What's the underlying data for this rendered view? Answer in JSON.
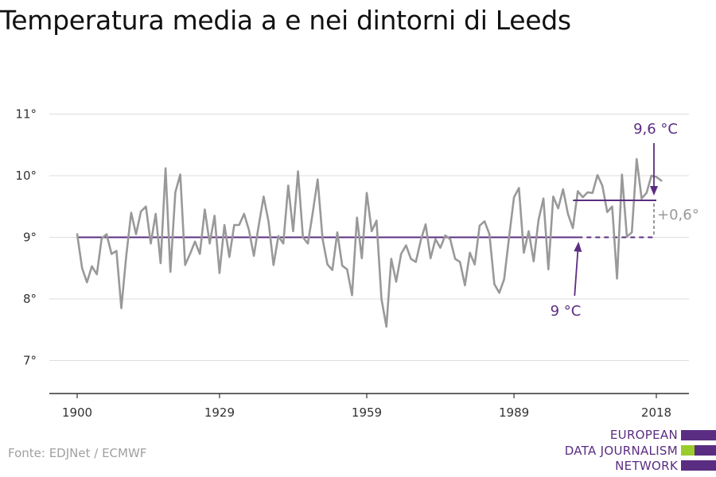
{
  "title": "Temperatura media a e nei dintorni di Leeds",
  "source": "Fonte: EDJNet / ECMWF",
  "logo": {
    "lines": [
      "EUROPEAN",
      "DATA JOURNALISM",
      "NETWORK"
    ],
    "colors": {
      "purple": "#5b2d82",
      "green": "#9ccc2c"
    }
  },
  "chart_data": {
    "type": "line",
    "title": "Temperatura media a e nei dintorni di Leeds",
    "xlabel": "",
    "ylabel": "",
    "xlim": [
      1900,
      2018
    ],
    "ylim": [
      6.5,
      11.5
    ],
    "x_ticks": [
      1900,
      1929,
      1959,
      1989,
      2018
    ],
    "y_ticks": [
      {
        "value": 7,
        "label": "7°"
      },
      {
        "value": 8,
        "label": "8°"
      },
      {
        "value": 9,
        "label": "9°"
      },
      {
        "value": 10,
        "label": "10°"
      },
      {
        "value": 11,
        "label": "11°"
      }
    ],
    "grid": "horizontal",
    "series": [
      {
        "color": "#999999",
        "x": [
          1900,
          1901,
          1902,
          1903,
          1904,
          1905,
          1906,
          1907,
          1908,
          1909,
          1910,
          1911,
          1912,
          1913,
          1914,
          1915,
          1916,
          1917,
          1918,
          1919,
          1920,
          1921,
          1922,
          1923,
          1924,
          1925,
          1926,
          1927,
          1928,
          1929,
          1930,
          1931,
          1932,
          1933,
          1934,
          1935,
          1936,
          1937,
          1938,
          1939,
          1940,
          1941,
          1942,
          1943,
          1944,
          1945,
          1946,
          1947,
          1948,
          1949,
          1950,
          1951,
          1952,
          1953,
          1954,
          1955,
          1956,
          1957,
          1958,
          1959,
          1960,
          1961,
          1962,
          1963,
          1964,
          1965,
          1966,
          1967,
          1968,
          1969,
          1970,
          1971,
          1972,
          1973,
          1974,
          1975,
          1976,
          1977,
          1978,
          1979,
          1980,
          1981,
          1982,
          1983,
          1984,
          1985,
          1986,
          1987,
          1988,
          1989,
          1990,
          1991,
          1992,
          1993,
          1994,
          1995,
          1996,
          1997,
          1998,
          1999,
          2000,
          2001,
          2002,
          2003,
          2004,
          2005,
          2006,
          2007,
          2008,
          2009,
          2010,
          2011,
          2012,
          2013,
          2014,
          2015,
          2016,
          2017,
          2018,
          2019
        ],
        "values": [
          9.05,
          8.5,
          8.27,
          8.53,
          8.4,
          8.98,
          9.05,
          8.73,
          8.78,
          7.85,
          8.7,
          9.4,
          9.05,
          9.42,
          9.5,
          8.9,
          9.38,
          8.58,
          10.12,
          8.44,
          9.73,
          10.02,
          8.55,
          8.73,
          8.93,
          8.73,
          9.45,
          8.9,
          9.35,
          8.42,
          9.2,
          8.68,
          9.2,
          9.2,
          9.38,
          9.12,
          8.7,
          9.2,
          9.66,
          9.25,
          8.55,
          9.02,
          8.9,
          9.84,
          9.1,
          10.07,
          9.0,
          8.9,
          9.4,
          9.94,
          8.97,
          8.56,
          8.47,
          9.08,
          8.54,
          8.48,
          8.06,
          9.32,
          8.66,
          9.72,
          9.1,
          9.27,
          8.0,
          7.55,
          8.65,
          8.28,
          8.73,
          8.87,
          8.65,
          8.6,
          8.95,
          9.21,
          8.66,
          8.97,
          8.83,
          9.03,
          8.97,
          8.65,
          8.6,
          8.22,
          8.75,
          8.56,
          9.19,
          9.26,
          9.05,
          8.24,
          8.1,
          8.32,
          9.0,
          9.65,
          9.8,
          8.75,
          9.1,
          8.61,
          9.28,
          9.63,
          8.48,
          9.66,
          9.47,
          9.78,
          9.38,
          9.15,
          9.75,
          9.65,
          9.73,
          9.72,
          10.01,
          9.84,
          9.41,
          9.5,
          8.33,
          10.02,
          9.01,
          9.08,
          10.27,
          9.63,
          9.72,
          10.0,
          9.98,
          9.92
        ]
      }
    ],
    "reference_lines": [
      {
        "value": 9.0,
        "x_start": 1900,
        "x_solid_end": 2002,
        "x_end": 2018,
        "color": "#5b2d82"
      },
      {
        "value": 9.6,
        "x_start": 2002,
        "x_end": 2018,
        "color": "#5b2d82"
      }
    ],
    "annotations": [
      {
        "text": "9,6 °C",
        "color": "#5b2d82"
      },
      {
        "text": "9 °C",
        "color": "#5b2d82"
      },
      {
        "text": "+0,6°",
        "color": "#999999"
      }
    ]
  }
}
